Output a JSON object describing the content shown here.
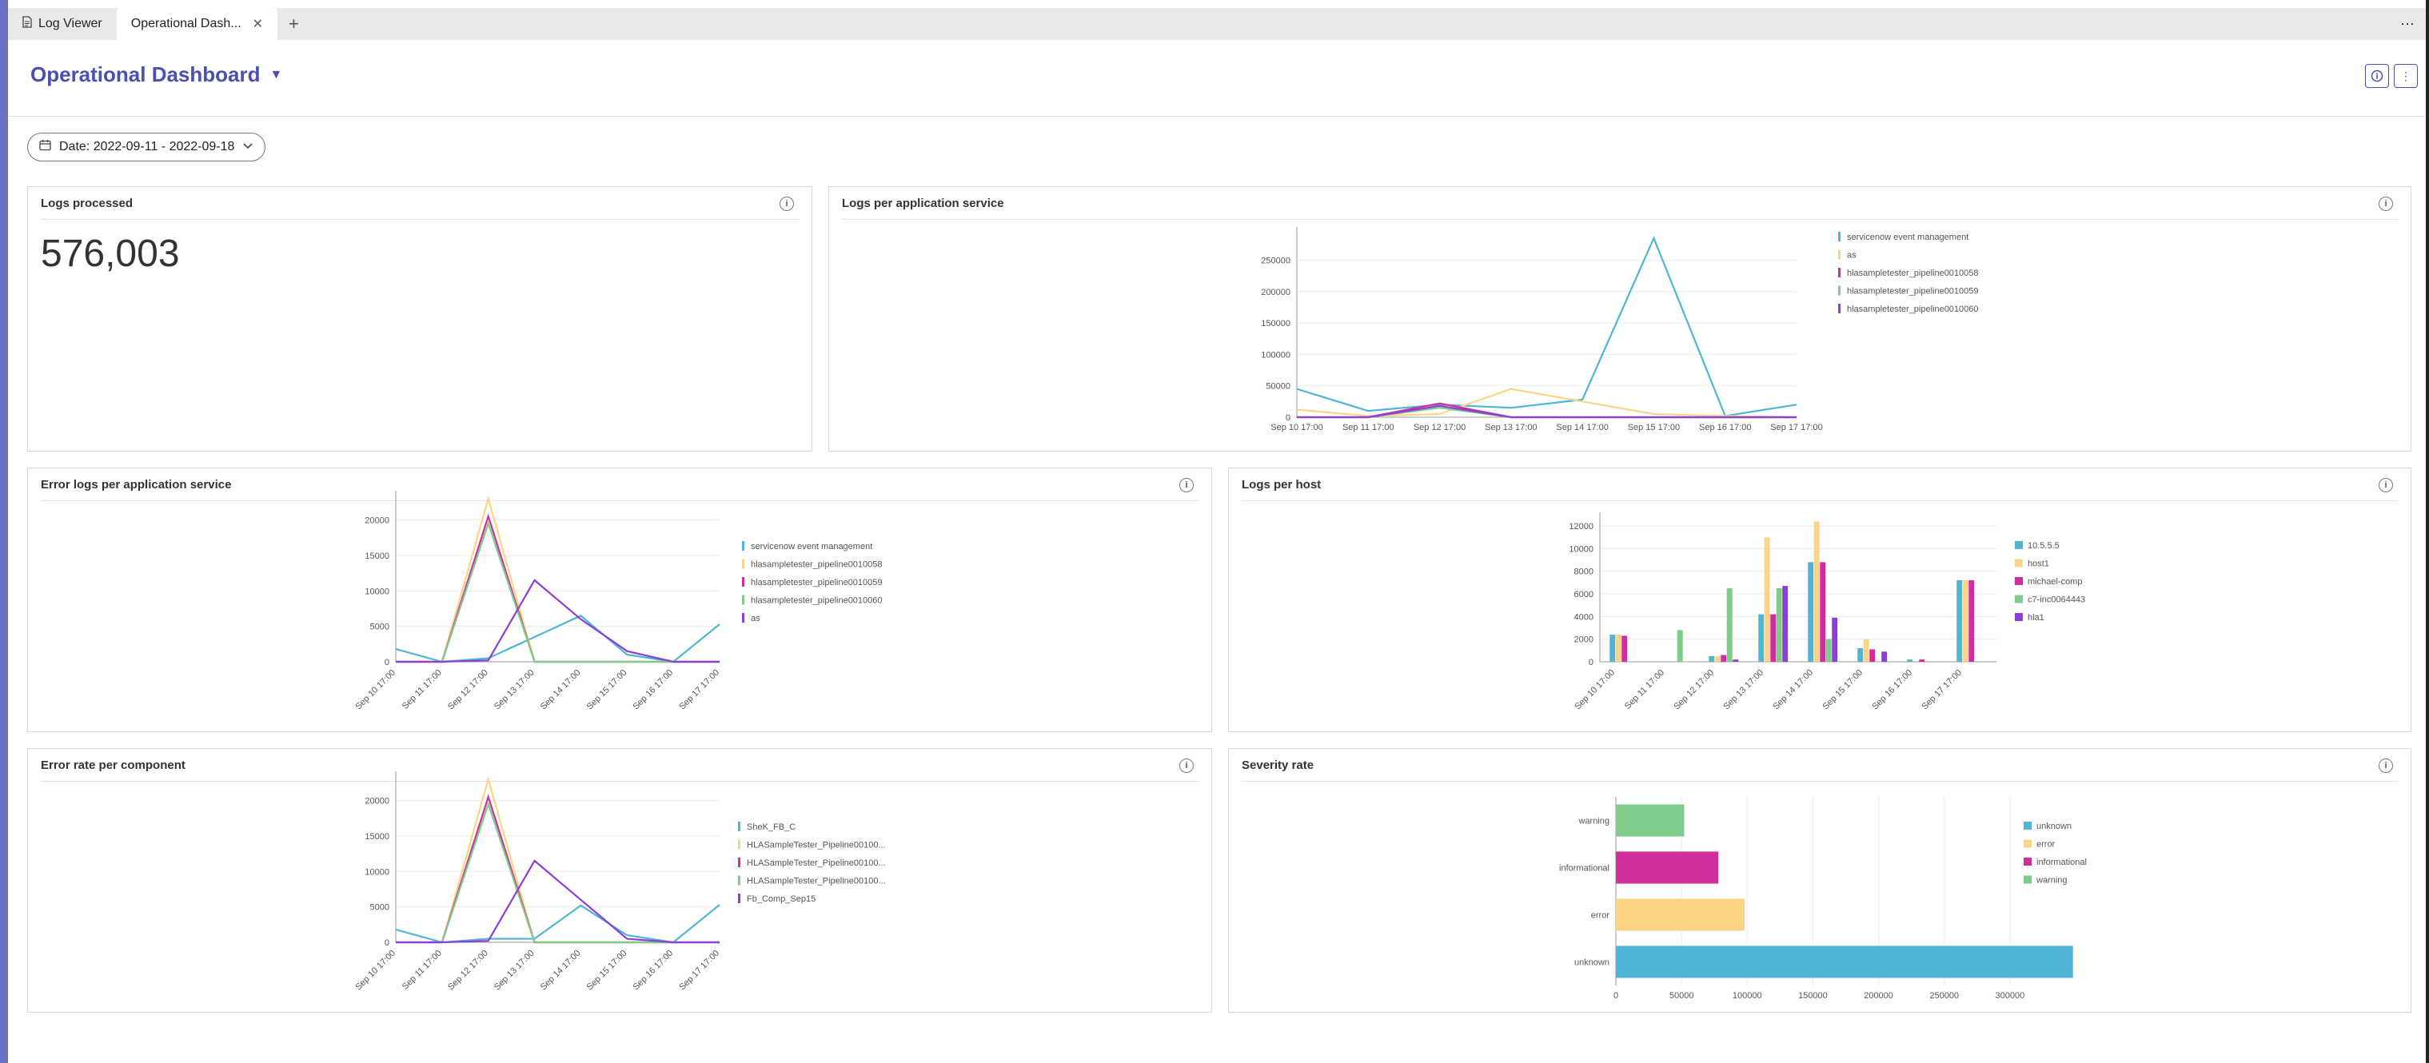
{
  "tabs": [
    {
      "label": "Log Viewer",
      "active": false
    },
    {
      "label": "Operational Dash...",
      "active": true
    }
  ],
  "header": {
    "title": "Operational Dashboard"
  },
  "date_filter": {
    "label": "Date: 2022-09-11 - 2022-09-18"
  },
  "colors": {
    "accent": "#4b4fb0",
    "cyan": "#4eb6d4",
    "yellow": "#fbd585",
    "magenta": "#d12e9c",
    "green": "#7fcc8a",
    "purple": "#8c3fd4"
  },
  "cards": {
    "logs_processed": {
      "title": "Logs processed",
      "value": "576,003"
    },
    "logs_per_app": {
      "title": "Logs per application service"
    },
    "error_logs_per_app": {
      "title": "Error logs per application service"
    },
    "logs_per_host": {
      "title": "Logs per host"
    },
    "error_rate_component": {
      "title": "Error rate per component"
    },
    "severity_rate": {
      "title": "Severity rate"
    }
  },
  "chart_data": [
    {
      "id": "logs_per_app",
      "type": "line",
      "x": [
        "Sep 10 17:00",
        "Sep 11 17:00",
        "Sep 12 17:00",
        "Sep 13 17:00",
        "Sep 14 17:00",
        "Sep 15 17:00",
        "Sep 16 17:00",
        "Sep 17 17:00"
      ],
      "y_ticks": [
        "0",
        "50000",
        "100000",
        "150000",
        "200000",
        "250000"
      ],
      "ylim": [
        0,
        290000
      ],
      "series": [
        {
          "name": "servicenow event management",
          "color": "#4eb6d4",
          "values": [
            45000,
            10000,
            20000,
            15000,
            28000,
            285000,
            2000,
            20000
          ]
        },
        {
          "name": "as",
          "color": "#fbd585",
          "values": [
            12000,
            2000,
            5000,
            45000,
            25000,
            5000,
            2000,
            0
          ]
        },
        {
          "name": "hlasampletester_pipeline0010058",
          "color": "#d12e9c",
          "values": [
            0,
            0,
            22000,
            0,
            0,
            0,
            0,
            0
          ]
        },
        {
          "name": "hlasampletester_pipeline0010059",
          "color": "#7fcc8a",
          "values": [
            0,
            0,
            15000,
            0,
            0,
            0,
            0,
            0
          ]
        },
        {
          "name": "hlasampletester_pipeline0010060",
          "color": "#8c3fd4",
          "values": [
            0,
            0,
            18000,
            0,
            0,
            0,
            0,
            0
          ]
        }
      ]
    },
    {
      "id": "error_logs_per_app",
      "type": "line",
      "x": [
        "Sep 10 17:00",
        "Sep 11 17:00",
        "Sep 12 17:00",
        "Sep 13 17:00",
        "Sep 14 17:00",
        "Sep 15 17:00",
        "Sep 16 17:00",
        "Sep 17 17:00"
      ],
      "y_ticks": [
        "0",
        "5000",
        "10000",
        "15000",
        "20000"
      ],
      "ylim": [
        0,
        23000
      ],
      "series": [
        {
          "name": "servicenow event management",
          "color": "#4eb6d4",
          "values": [
            1800,
            0,
            500,
            3500,
            6500,
            1000,
            0,
            5300
          ]
        },
        {
          "name": "hlasampletester_pipeline0010058",
          "color": "#fbd585",
          "values": [
            0,
            0,
            23000,
            0,
            0,
            0,
            0,
            0
          ]
        },
        {
          "name": "hlasampletester_pipeline0010059",
          "color": "#d12e9c",
          "values": [
            0,
            0,
            20500,
            0,
            0,
            0,
            0,
            0
          ]
        },
        {
          "name": "hlasampletester_pipeline0010060",
          "color": "#7fcc8a",
          "values": [
            0,
            0,
            19500,
            0,
            0,
            0,
            0,
            0
          ]
        },
        {
          "name": "as",
          "color": "#8c3fd4",
          "values": [
            0,
            0,
            200,
            11500,
            6000,
            1500,
            0,
            0
          ]
        }
      ]
    },
    {
      "id": "logs_per_host",
      "type": "bar",
      "x": [
        "Sep 10 17:00",
        "Sep 11 17:00",
        "Sep 12 17:00",
        "Sep 13 17:00",
        "Sep 14 17:00",
        "Sep 15 17:00",
        "Sep 16 17:00",
        "Sep 17 17:00"
      ],
      "y_ticks": [
        "0",
        "2000",
        "4000",
        "6000",
        "8000",
        "10000",
        "12000"
      ],
      "ylim": [
        0,
        12500
      ],
      "series": [
        {
          "name": "10.5.5.5",
          "color": "#4eb6d4",
          "values": [
            2400,
            0,
            500,
            4200,
            8800,
            1200,
            200,
            7200
          ]
        },
        {
          "name": "host1",
          "color": "#fbd585",
          "values": [
            2400,
            0,
            500,
            11000,
            12400,
            2000,
            0,
            7200
          ]
        },
        {
          "name": "michael-comp",
          "color": "#d12e9c",
          "values": [
            2300,
            0,
            600,
            4200,
            8800,
            1100,
            200,
            7200
          ]
        },
        {
          "name": "c7-inc0064443",
          "color": "#7fcc8a",
          "values": [
            0,
            2800,
            6500,
            6500,
            2000,
            0,
            0,
            0
          ]
        },
        {
          "name": "hla1",
          "color": "#8c3fd4",
          "values": [
            0,
            0,
            200,
            6700,
            3900,
            900,
            0,
            0
          ]
        }
      ]
    },
    {
      "id": "error_rate_component",
      "type": "line",
      "x": [
        "Sep 10 17:00",
        "Sep 11 17:00",
        "Sep 12 17:00",
        "Sep 13 17:00",
        "Sep 14 17:00",
        "Sep 15 17:00",
        "Sep 16 17:00",
        "Sep 17 17:00"
      ],
      "y_ticks": [
        "0",
        "5000",
        "10000",
        "15000",
        "20000"
      ],
      "ylim": [
        0,
        23000
      ],
      "series": [
        {
          "name": "SheK_FB_C",
          "color": "#4eb6d4",
          "values": [
            1800,
            0,
            500,
            500,
            5200,
            1000,
            0,
            5300
          ]
        },
        {
          "name": "HLASampleTester_Pipeline00100...",
          "color": "#fbd585",
          "values": [
            0,
            0,
            23000,
            0,
            0,
            0,
            0,
            0
          ]
        },
        {
          "name": "HLASampleTester_Pipeline00100...",
          "color": "#d12e9c",
          "values": [
            0,
            0,
            20500,
            0,
            0,
            0,
            0,
            0
          ]
        },
        {
          "name": "HLASampleTester_Pipeline00100...",
          "color": "#7fcc8a",
          "values": [
            0,
            0,
            19500,
            0,
            0,
            0,
            0,
            0
          ]
        },
        {
          "name": "Fb_Comp_Sep15",
          "color": "#8c3fd4",
          "values": [
            0,
            0,
            200,
            11500,
            6000,
            500,
            0,
            0
          ]
        }
      ]
    },
    {
      "id": "severity_rate",
      "type": "bar",
      "orientation": "horizontal",
      "categories": [
        "warning",
        "informational",
        "error",
        "unknown"
      ],
      "x_ticks": [
        "0",
        "50000",
        "100000",
        "150000",
        "200000",
        "250000",
        "300000"
      ],
      "xlim": [
        0,
        350000
      ],
      "values": [
        52000,
        78000,
        98000,
        348000
      ],
      "colors": [
        "#7fcc8a",
        "#d12e9c",
        "#fbd585",
        "#4eb6d4"
      ],
      "legend": [
        {
          "name": "unknown",
          "color": "#4eb6d4"
        },
        {
          "name": "error",
          "color": "#fbd585"
        },
        {
          "name": "informational",
          "color": "#d12e9c"
        },
        {
          "name": "warning",
          "color": "#7fcc8a"
        }
      ]
    }
  ]
}
